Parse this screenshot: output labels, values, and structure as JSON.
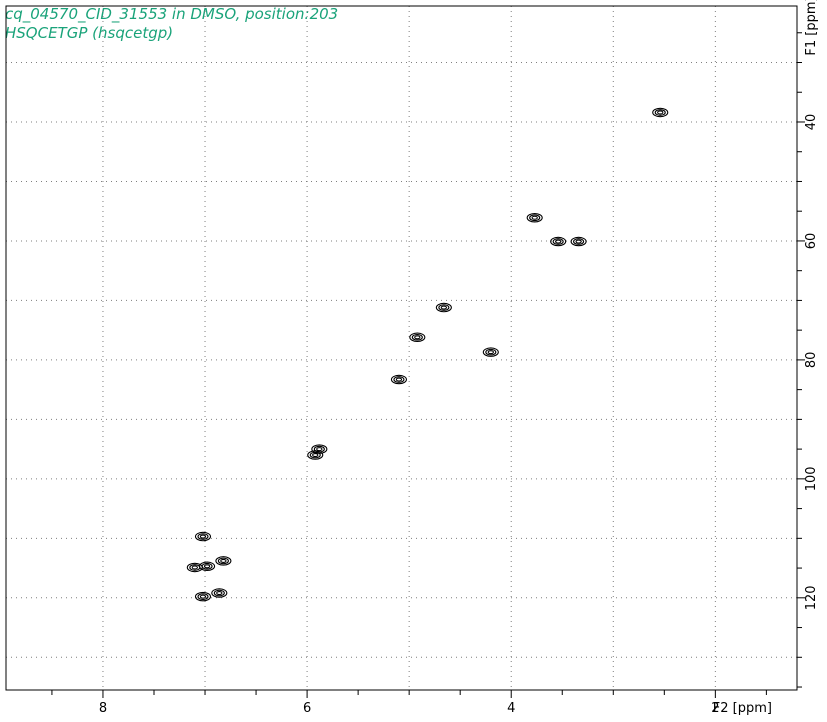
{
  "header": {
    "title": "cq_04570_CID_31553 in DMSO, position:203",
    "subtitle": "HSQCETGP (hsqcetgp)"
  },
  "chart_data": {
    "type": "scatter",
    "title": "cq_04570_CID_31553 in DMSO, position:203",
    "subtitle": "HSQCETGP (hsqcetgp)",
    "xlabel": "F2 [ppm]",
    "ylabel": "F1 [ppm]",
    "x_reversed": true,
    "y_reversed": true,
    "xlim": [
      8.95,
      1.2
    ],
    "ylim": [
      20.5,
      135.5
    ],
    "x_ticks": [
      8,
      6,
      4,
      2
    ],
    "y_ticks": [
      40,
      60,
      80,
      100,
      120
    ],
    "grid": true,
    "peak_color": "#000000",
    "title_color": "#1aa37a",
    "grid_color": "#7f7f7f",
    "series": [
      {
        "x": [
          2.54,
          3.77,
          3.54,
          3.34,
          4.66,
          4.92,
          4.2,
          5.1,
          5.88,
          5.92,
          7.02,
          7.1,
          6.98,
          6.82,
          7.02,
          6.86
        ],
        "y": [
          38.4,
          56.1,
          60.1,
          60.1,
          71.2,
          76.2,
          78.7,
          83.3,
          95.0,
          96.0,
          109.7,
          114.9,
          114.7,
          113.8,
          119.8,
          119.2
        ]
      }
    ]
  }
}
